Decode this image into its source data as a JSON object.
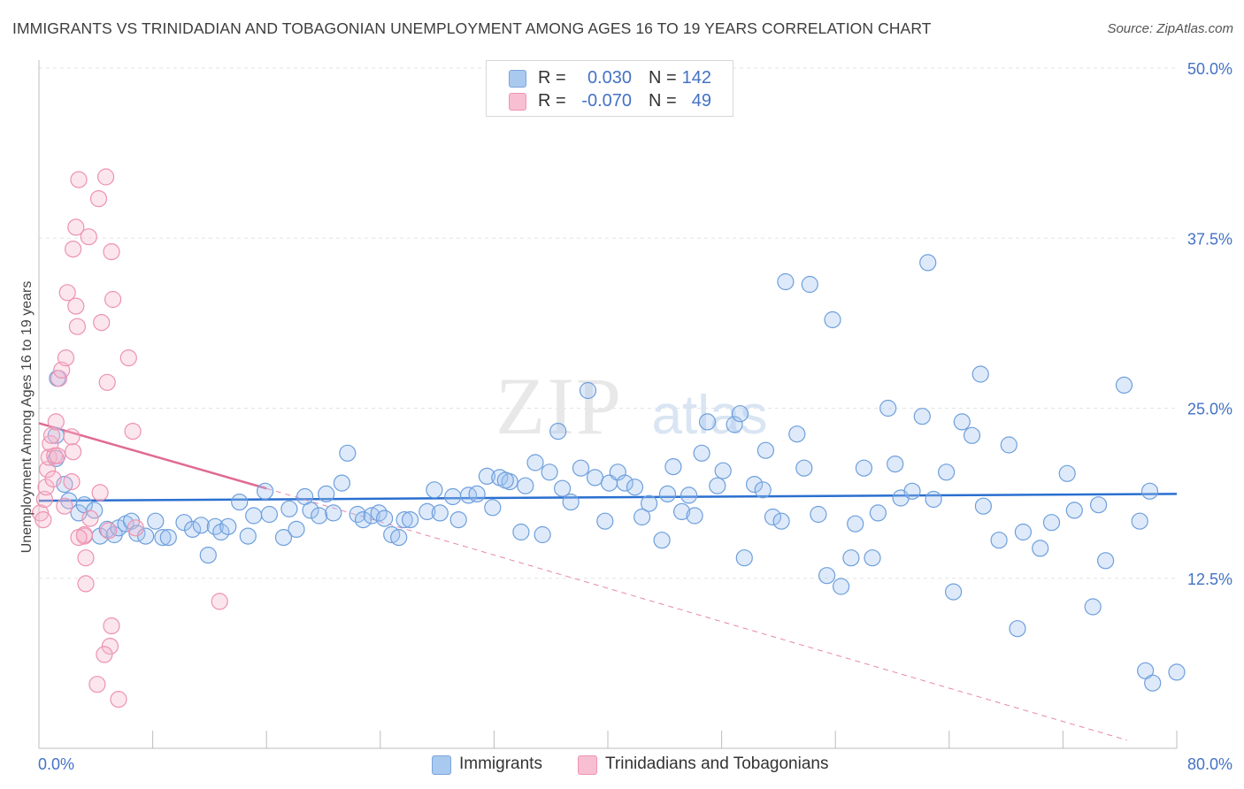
{
  "title": "IMMIGRANTS VS TRINIDADIAN AND TOBAGONIAN UNEMPLOYMENT AMONG AGES 16 TO 19 YEARS CORRELATION CHART",
  "source": "Source: ZipAtlas.com",
  "watermark": {
    "zip": "ZIP",
    "atlas": "atlas"
  },
  "legend_top": [
    {
      "r_label": "R =",
      "r_value": "0.030",
      "n_label": "N =",
      "n_value": "142",
      "color": "#aac9ef",
      "border": "#7aa6dd"
    },
    {
      "r_label": "R =",
      "r_value": "-0.070",
      "n_label": "N =",
      "n_value": "49",
      "color": "#f7bfd1",
      "border": "#ef95b3"
    }
  ],
  "legend_bottom": [
    {
      "label": "Immigrants",
      "color": "#aac9ef",
      "border": "#7aa6dd"
    },
    {
      "label": "Trinidadians and Tobagonians",
      "color": "#f7bfd1",
      "border": "#ef95b3"
    }
  ],
  "colors": {
    "blue_fill": "rgba(160,196,240,0.35)",
    "blue_stroke": "#6e9fdc",
    "blue_line": "#2a6fd0",
    "pink_fill": "rgba(246,182,204,0.35)",
    "pink_stroke": "#ec92b2",
    "pink_line": "#e06a94",
    "grid": "#e3e3e3",
    "axis_label": "#4472c4"
  },
  "chart_data": {
    "type": "scatter",
    "ylabel": "Unemployment Among Ages 16 to 19 years",
    "xlabel": "",
    "xlim": [
      0,
      80
    ],
    "ylim": [
      0,
      50
    ],
    "x_tick_labels": [
      "0.0%",
      "80.0%"
    ],
    "y_ticks": [
      12.5,
      25.0,
      37.5,
      50.0
    ],
    "y_tick_labels": [
      "12.5%",
      "25.0%",
      "37.5%",
      "50.0%"
    ],
    "grid": true,
    "legend_position": "top-center",
    "series": [
      {
        "name": "Immigrants",
        "trend": {
          "x": [
            0,
            80
          ],
          "y": [
            18.2,
            18.7
          ],
          "style": "solid"
        },
        "points": [
          [
            1.3,
            27.2
          ],
          [
            1.2,
            23.0
          ],
          [
            1.2,
            21.3
          ],
          [
            1.8,
            19.4
          ],
          [
            2.1,
            18.2
          ],
          [
            2.8,
            17.3
          ],
          [
            3.2,
            17.9
          ],
          [
            3.9,
            17.5
          ],
          [
            4.3,
            15.6
          ],
          [
            4.8,
            16.1
          ],
          [
            5.3,
            15.7
          ],
          [
            5.6,
            16.2
          ],
          [
            6.1,
            16.5
          ],
          [
            6.5,
            16.7
          ],
          [
            6.9,
            15.8
          ],
          [
            7.5,
            15.6
          ],
          [
            8.2,
            16.7
          ],
          [
            8.7,
            15.5
          ],
          [
            9.1,
            15.5
          ],
          [
            10.2,
            16.6
          ],
          [
            10.8,
            16.1
          ],
          [
            11.4,
            16.4
          ],
          [
            11.9,
            14.2
          ],
          [
            12.4,
            16.3
          ],
          [
            12.8,
            15.9
          ],
          [
            13.3,
            16.3
          ],
          [
            14.1,
            18.1
          ],
          [
            14.7,
            15.6
          ],
          [
            15.1,
            17.1
          ],
          [
            16.2,
            17.2
          ],
          [
            15.9,
            18.9
          ],
          [
            17.2,
            15.5
          ],
          [
            17.6,
            17.6
          ],
          [
            18.1,
            16.1
          ],
          [
            18.7,
            18.5
          ],
          [
            19.1,
            17.5
          ],
          [
            19.7,
            17.1
          ],
          [
            20.2,
            18.7
          ],
          [
            20.7,
            17.3
          ],
          [
            21.3,
            19.5
          ],
          [
            21.7,
            21.7
          ],
          [
            22.4,
            17.2
          ],
          [
            22.8,
            16.8
          ],
          [
            23.4,
            17.1
          ],
          [
            23.9,
            17.3
          ],
          [
            24.3,
            16.9
          ],
          [
            24.8,
            15.7
          ],
          [
            25.3,
            15.5
          ],
          [
            25.7,
            16.8
          ],
          [
            26.1,
            16.8
          ],
          [
            27.3,
            17.4
          ],
          [
            27.8,
            19.0
          ],
          [
            28.2,
            17.3
          ],
          [
            29.1,
            18.5
          ],
          [
            29.5,
            16.8
          ],
          [
            30.2,
            18.6
          ],
          [
            30.8,
            18.7
          ],
          [
            31.5,
            20.0
          ],
          [
            31.9,
            17.7
          ],
          [
            32.4,
            19.9
          ],
          [
            33.1,
            19.6
          ],
          [
            33.9,
            15.9
          ],
          [
            34.2,
            19.3
          ],
          [
            32.8,
            19.7
          ],
          [
            34.9,
            21.0
          ],
          [
            35.4,
            15.7
          ],
          [
            35.9,
            20.3
          ],
          [
            36.5,
            23.3
          ],
          [
            36.8,
            19.1
          ],
          [
            37.4,
            18.1
          ],
          [
            38.1,
            20.6
          ],
          [
            38.6,
            26.3
          ],
          [
            39.1,
            19.9
          ],
          [
            39.8,
            16.7
          ],
          [
            40.1,
            19.5
          ],
          [
            40.7,
            20.3
          ],
          [
            41.2,
            19.5
          ],
          [
            41.9,
            19.2
          ],
          [
            42.4,
            17.0
          ],
          [
            42.9,
            18.0
          ],
          [
            43.8,
            15.3
          ],
          [
            44.2,
            18.7
          ],
          [
            44.6,
            20.7
          ],
          [
            45.2,
            17.4
          ],
          [
            45.7,
            18.6
          ],
          [
            46.1,
            17.1
          ],
          [
            46.6,
            21.7
          ],
          [
            47.0,
            24.0
          ],
          [
            47.7,
            19.3
          ],
          [
            48.1,
            20.4
          ],
          [
            48.9,
            23.8
          ],
          [
            49.3,
            24.6
          ],
          [
            49.6,
            14.0
          ],
          [
            50.3,
            19.4
          ],
          [
            50.9,
            19.0
          ],
          [
            51.1,
            21.9
          ],
          [
            51.6,
            17.0
          ],
          [
            52.2,
            16.7
          ],
          [
            52.5,
            34.3
          ],
          [
            53.3,
            23.1
          ],
          [
            53.8,
            20.6
          ],
          [
            54.2,
            34.1
          ],
          [
            54.8,
            17.2
          ],
          [
            55.4,
            12.7
          ],
          [
            55.8,
            31.5
          ],
          [
            56.4,
            11.9
          ],
          [
            57.1,
            14.0
          ],
          [
            57.4,
            16.5
          ],
          [
            58.0,
            20.6
          ],
          [
            58.6,
            14.0
          ],
          [
            59.0,
            17.3
          ],
          [
            59.7,
            25.0
          ],
          [
            60.2,
            20.9
          ],
          [
            60.6,
            18.4
          ],
          [
            61.4,
            18.9
          ],
          [
            62.1,
            24.4
          ],
          [
            62.5,
            35.7
          ],
          [
            62.9,
            18.3
          ],
          [
            63.8,
            20.3
          ],
          [
            64.3,
            11.5
          ],
          [
            64.9,
            24.0
          ],
          [
            65.6,
            23.0
          ],
          [
            66.2,
            27.5
          ],
          [
            66.4,
            17.8
          ],
          [
            67.5,
            15.3
          ],
          [
            68.2,
            22.3
          ],
          [
            68.8,
            8.8
          ],
          [
            69.2,
            15.9
          ],
          [
            70.4,
            14.7
          ],
          [
            71.2,
            16.6
          ],
          [
            72.3,
            20.2
          ],
          [
            72.8,
            17.5
          ],
          [
            74.1,
            10.4
          ],
          [
            74.5,
            17.9
          ],
          [
            75.0,
            13.8
          ],
          [
            76.3,
            26.7
          ],
          [
            77.4,
            16.7
          ],
          [
            77.8,
            5.7
          ],
          [
            78.1,
            18.9
          ],
          [
            78.3,
            4.8
          ],
          [
            80.0,
            5.6
          ]
        ]
      },
      {
        "name": "Trinidadians and Tobagonians",
        "trend": {
          "x": [
            0,
            16
          ],
          "y": [
            23.9,
            19.1
          ],
          "style": "solid",
          "extended": {
            "x": [
              16,
              76.5
            ],
            "y": [
              19.1,
              0.6
            ],
            "style": "dashed"
          }
        },
        "points": [
          [
            0.1,
            17.3
          ],
          [
            0.3,
            16.8
          ],
          [
            0.4,
            18.3
          ],
          [
            0.5,
            19.2
          ],
          [
            0.6,
            20.5
          ],
          [
            0.7,
            21.4
          ],
          [
            0.8,
            22.4
          ],
          [
            1.1,
            21.5
          ],
          [
            1.3,
            21.5
          ],
          [
            0.9,
            23.0
          ],
          [
            1.2,
            24.0
          ],
          [
            1.4,
            27.2
          ],
          [
            1.6,
            27.8
          ],
          [
            1.9,
            28.7
          ],
          [
            2.3,
            22.9
          ],
          [
            2.4,
            21.8
          ],
          [
            2.0,
            33.5
          ],
          [
            2.6,
            38.3
          ],
          [
            2.4,
            36.7
          ],
          [
            2.6,
            32.5
          ],
          [
            2.7,
            31.0
          ],
          [
            2.8,
            41.8
          ],
          [
            3.2,
            15.6
          ],
          [
            3.3,
            14.0
          ],
          [
            3.3,
            12.1
          ],
          [
            3.5,
            37.6
          ],
          [
            3.6,
            16.9
          ],
          [
            4.2,
            40.4
          ],
          [
            4.4,
            31.3
          ],
          [
            4.3,
            18.8
          ],
          [
            4.7,
            42.0
          ],
          [
            4.8,
            26.9
          ],
          [
            4.9,
            16.0
          ],
          [
            5.1,
            36.5
          ],
          [
            5.2,
            33.0
          ],
          [
            6.3,
            28.7
          ],
          [
            6.6,
            23.3
          ],
          [
            6.8,
            16.2
          ],
          [
            5.1,
            9.0
          ],
          [
            5.0,
            7.5
          ],
          [
            4.6,
            6.9
          ],
          [
            4.1,
            4.7
          ],
          [
            5.6,
            3.6
          ],
          [
            12.7,
            10.8
          ],
          [
            3.2,
            15.7
          ],
          [
            2.3,
            19.6
          ],
          [
            1.8,
            17.8
          ],
          [
            1.0,
            19.8
          ],
          [
            2.8,
            15.5
          ]
        ]
      }
    ]
  }
}
